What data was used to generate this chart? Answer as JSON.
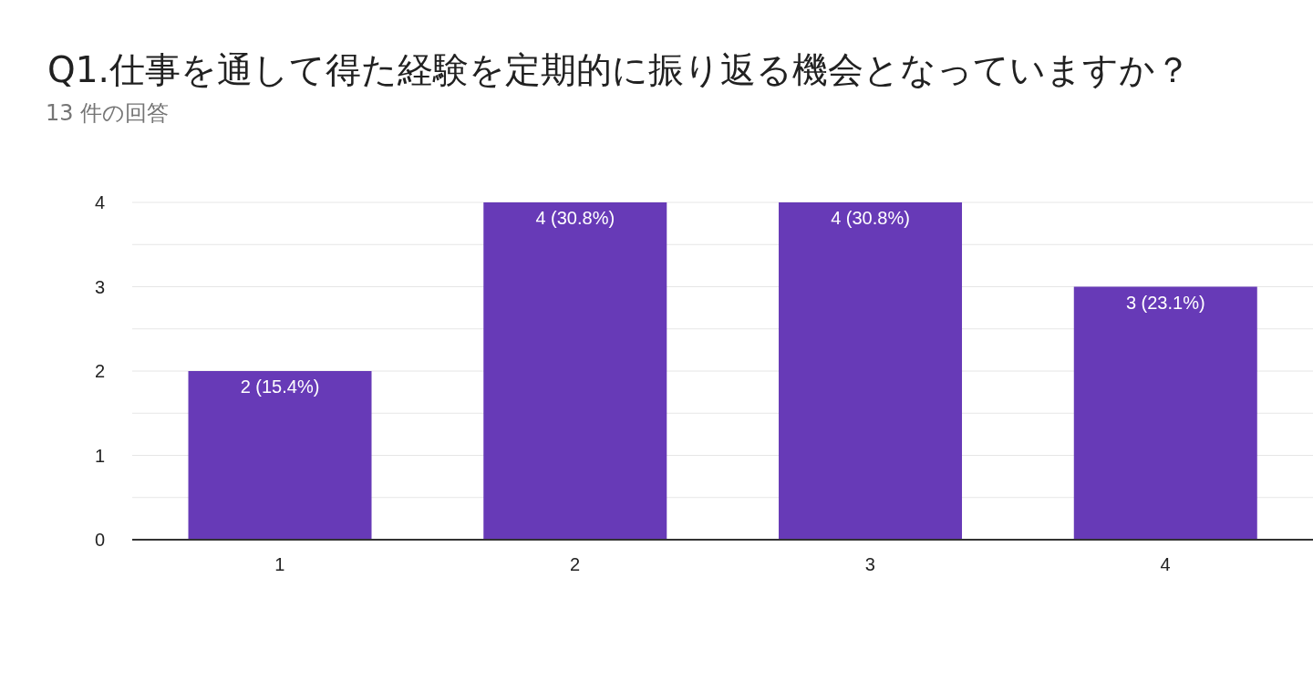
{
  "chart_data": {
    "type": "bar",
    "title": "Q1.仕事を通して得た経験を定期的に振り返る機会となっていますか？",
    "subtitle": "13 件の回答",
    "categories": [
      "1",
      "2",
      "3",
      "4"
    ],
    "values": [
      2,
      4,
      4,
      3
    ],
    "value_labels": [
      "2 (15.4%)",
      "4 (30.8%)",
      "4 (30.8%)",
      "3 (23.1%)"
    ],
    "color": "#673ab7",
    "ylim": [
      0,
      4
    ],
    "yticks": [
      0,
      {
        "value": 0.5,
        "label": null
      },
      1,
      {
        "value": 1.5,
        "label": null
      },
      2,
      {
        "value": 2.5,
        "label": null
      },
      3,
      {
        "value": 3.5,
        "label": null
      },
      4
    ],
    "grid": "y"
  }
}
